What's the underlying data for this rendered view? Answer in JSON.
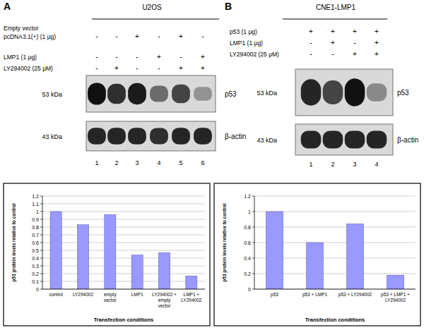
{
  "panels": [
    {
      "label": "A",
      "title": "U2OS",
      "conditions": [
        {
          "label": [
            "Empty vector",
            "pcDNA3.1(+) (1 μg)"
          ],
          "signs": [
            "-",
            "-",
            "+",
            "-",
            "+",
            "-"
          ]
        },
        {
          "label": [
            "LMP1 (1 μg)"
          ],
          "signs": [
            "-",
            "-",
            "-",
            "+",
            "-",
            "+"
          ]
        },
        {
          "label": [
            "LY294002 (25 μM)"
          ],
          "signs": [
            "-",
            "+",
            "-",
            "-",
            "+",
            "+"
          ]
        }
      ],
      "lanes": [
        1,
        2,
        3,
        4,
        5,
        6
      ],
      "blots": [
        {
          "size": "53 kDa",
          "protein": "p53",
          "intensity": [
            1.0,
            0.85,
            0.95,
            0.55,
            0.75,
            0.35
          ]
        },
        {
          "size": "43 kDa",
          "protein": "β-actin",
          "intensity": [
            0.9,
            0.9,
            0.9,
            0.85,
            0.9,
            0.9
          ]
        }
      ]
    },
    {
      "label": "B",
      "title": "CNE1-LMP1",
      "conditions": [
        {
          "label": [
            "p53 (1 μg)"
          ],
          "signs": [
            "+",
            "+",
            "+",
            "+"
          ]
        },
        {
          "label": [
            "LMP1 (1 μg)"
          ],
          "signs": [
            "-",
            "+",
            "-",
            "+"
          ]
        },
        {
          "label": [
            "LY294002 (25 μM)"
          ],
          "signs": [
            "-",
            "-",
            "+",
            "+"
          ]
        }
      ],
      "lanes": [
        1,
        2,
        3,
        4
      ],
      "blots": [
        {
          "size": "53 kDa",
          "protein": "p53",
          "intensity": [
            0.9,
            0.75,
            1.0,
            0.4
          ]
        },
        {
          "size": "43 kDa",
          "protein": "β-actin",
          "intensity": [
            0.9,
            0.9,
            0.9,
            0.9
          ]
        }
      ]
    }
  ],
  "chart_data": [
    {
      "type": "bar",
      "y_label": "p53 protein levels relative to control",
      "x_label": "Transfection conditions",
      "categories": [
        "control",
        "LY294002",
        "empty vector",
        "LMP1",
        "LY294002 + empty vector",
        "LMP1 + LY294002"
      ],
      "values": [
        1,
        0.83,
        0.96,
        0.44,
        0.47,
        0.17
      ],
      "color": "#9999ff",
      "ylim": [
        0,
        1.2
      ],
      "yticks": [
        0,
        0.1,
        0.2,
        0.3,
        0.4,
        0.5,
        0.6,
        0.7,
        0.8,
        0.9,
        1,
        1.1,
        1.2
      ],
      "grid": true
    },
    {
      "type": "bar",
      "y_label": "p53 protein levels relative to control",
      "x_label": "Transfection conditions",
      "categories": [
        "p53",
        "p53 + LMP1",
        "p53 + LY294002",
        "p53 + LMP1 + LY294002"
      ],
      "values": [
        1,
        0.6,
        0.84,
        0.18
      ],
      "color": "#9999ff",
      "ylim": [
        0,
        1.2
      ],
      "yticks": [
        0,
        0.2,
        0.4,
        0.6,
        0.8,
        1,
        1.2
      ],
      "grid": true
    }
  ]
}
